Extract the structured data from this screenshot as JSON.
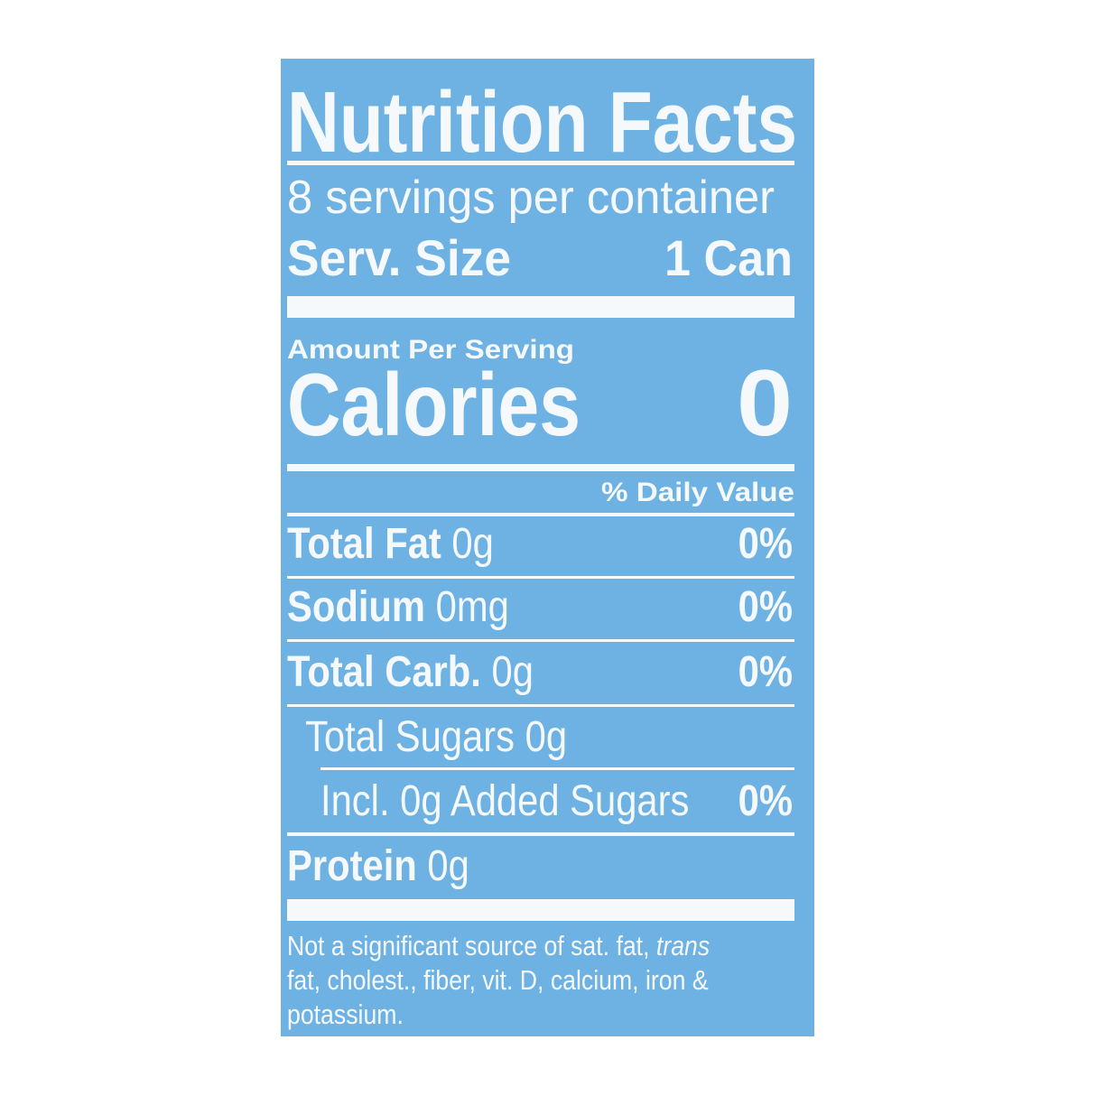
{
  "label": {
    "title": "Nutrition Facts",
    "servings": "8 servings per container",
    "serving_size": {
      "label": "Serv. Size",
      "value": "1 Can"
    },
    "amount_per_serving": "Amount Per Serving",
    "calories": {
      "label": "Calories",
      "value": "0"
    },
    "daily_value_header": "% Daily Value",
    "rows": [
      {
        "name": "Total Fat",
        "amount": "0g",
        "dv": "0%"
      },
      {
        "name": "Sodium",
        "amount": "0mg",
        "dv": "0%"
      },
      {
        "name": "Total Carb.",
        "amount": "0g",
        "dv": "0%"
      },
      {
        "amount": "Total Sugars 0g"
      },
      {
        "amount": "Incl. 0g Added Sugars",
        "dv": "0%"
      },
      {
        "name": "Protein",
        "amount": "0g"
      }
    ],
    "footnote": [
      [
        "Not a significant source of sat. fat, ",
        "trans"
      ],
      [
        "fat, cholest., fiber, vit. D, calcium, iron &"
      ],
      [
        "potassium."
      ]
    ]
  }
}
